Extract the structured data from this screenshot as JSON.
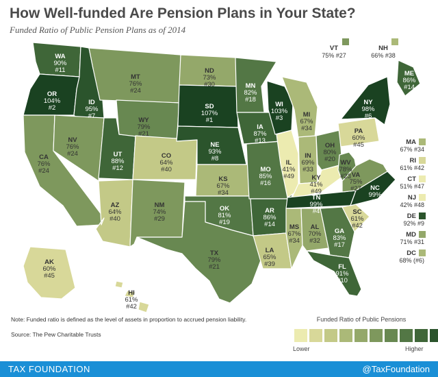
{
  "title": "How Well-funded Are Pension Plans in Your State?",
  "subtitle": "Funded Ratio of Public Pension Plans as of 2014",
  "note": "Note: Funded ratio is defined as the level of assets in proportion to accrued pension liability.",
  "source": "Source: The Pew Charitable Trusts",
  "legend": {
    "title": "Funded Ratio of Public Pensions",
    "lower": "Lower",
    "higher": "Higher",
    "colors": [
      "#ecebb0",
      "#d8d899",
      "#c3c987",
      "#abb978",
      "#94a86a",
      "#7e985d",
      "#688851",
      "#537745",
      "#3f6638",
      "#2b542c",
      "#1a4221"
    ]
  },
  "footer": {
    "brand": "TAX FOUNDATION",
    "handle": "@TaxFoundation"
  },
  "states": [
    {
      "code": "WA",
      "ratio": "90%",
      "rank": "#11",
      "level": 8
    },
    {
      "code": "OR",
      "ratio": "104%",
      "rank": "#2",
      "level": 10
    },
    {
      "code": "CA",
      "ratio": "76%",
      "rank": "#24",
      "level": 5
    },
    {
      "code": "ID",
      "ratio": "95%",
      "rank": "#7",
      "level": 9
    },
    {
      "code": "NV",
      "ratio": "76%",
      "rank": "#24",
      "level": 5
    },
    {
      "code": "UT",
      "ratio": "88%",
      "rank": "#12",
      "level": 8
    },
    {
      "code": "AZ",
      "ratio": "64%",
      "rank": "#40",
      "level": 2
    },
    {
      "code": "MT",
      "ratio": "76%",
      "rank": "#24",
      "level": 5
    },
    {
      "code": "WY",
      "ratio": "79%",
      "rank": "#21",
      "level": 6
    },
    {
      "code": "CO",
      "ratio": "64%",
      "rank": "#40",
      "level": 2
    },
    {
      "code": "NM",
      "ratio": "74%",
      "rank": "#29",
      "level": 5
    },
    {
      "code": "ND",
      "ratio": "73%",
      "rank": "#30",
      "level": 4
    },
    {
      "code": "SD",
      "ratio": "107%",
      "rank": "#1",
      "level": 10
    },
    {
      "code": "NE",
      "ratio": "93%",
      "rank": "#8",
      "level": 9
    },
    {
      "code": "KS",
      "ratio": "67%",
      "rank": "#34",
      "level": 3
    },
    {
      "code": "OK",
      "ratio": "81%",
      "rank": "#19",
      "level": 7
    },
    {
      "code": "TX",
      "ratio": "79%",
      "rank": "#21",
      "level": 6
    },
    {
      "code": "MN",
      "ratio": "82%",
      "rank": "#18",
      "level": 7
    },
    {
      "code": "IA",
      "ratio": "87%",
      "rank": "#13",
      "level": 8
    },
    {
      "code": "MO",
      "ratio": "85%",
      "rank": "#16",
      "level": 7
    },
    {
      "code": "AR",
      "ratio": "86%",
      "rank": "#14",
      "level": 8
    },
    {
      "code": "LA",
      "ratio": "65%",
      "rank": "#39",
      "level": 2
    },
    {
      "code": "WI",
      "ratio": "103%",
      "rank": "#3",
      "level": 10
    },
    {
      "code": "IL",
      "ratio": "41%",
      "rank": "#49",
      "level": 0
    },
    {
      "code": "MI",
      "ratio": "67%",
      "rank": "#34",
      "level": 3
    },
    {
      "code": "IN",
      "ratio": "69%",
      "rank": "#33",
      "level": 3
    },
    {
      "code": "OH",
      "ratio": "80%",
      "rank": "#20",
      "level": 6
    },
    {
      "code": "KY",
      "ratio": "41%",
      "rank": "#49",
      "level": 0
    },
    {
      "code": "TN",
      "ratio": "99%",
      "rank": "#4",
      "level": 10
    },
    {
      "code": "MS",
      "ratio": "67%",
      "rank": "#34",
      "level": 3
    },
    {
      "code": "AL",
      "ratio": "70%",
      "rank": "#32",
      "level": 4
    },
    {
      "code": "GA",
      "ratio": "83%",
      "rank": "#17",
      "level": 7
    },
    {
      "code": "FL",
      "ratio": "91%",
      "rank": "#10",
      "level": 8
    },
    {
      "code": "SC",
      "ratio": "61%",
      "rank": "#42",
      "level": 1
    },
    {
      "code": "NC",
      "ratio": "99%",
      "rank": "#4",
      "level": 10
    },
    {
      "code": "VA",
      "ratio": "75%",
      "rank": "#27",
      "level": 5
    },
    {
      "code": "WV",
      "ratio": "78%",
      "rank": "#23",
      "level": 6
    },
    {
      "code": "PA",
      "ratio": "60%",
      "rank": "#45",
      "level": 1
    },
    {
      "code": "NY",
      "ratio": "98%",
      "rank": "#6",
      "level": 10
    },
    {
      "code": "ME",
      "ratio": "86%",
      "rank": "#14",
      "level": 8
    },
    {
      "code": "AK",
      "ratio": "60%",
      "rank": "#45",
      "level": 1
    },
    {
      "code": "HI",
      "ratio": "61%",
      "rank": "#42",
      "level": 1
    }
  ],
  "callouts": [
    {
      "code": "VT",
      "text": "75% #27",
      "level": 5
    },
    {
      "code": "NH",
      "text": "66% #38",
      "level": 3
    },
    {
      "code": "MA",
      "text": "67% #34",
      "level": 3
    },
    {
      "code": "RI",
      "text": "61% #42",
      "level": 1
    },
    {
      "code": "CT",
      "text": "51% #47",
      "level": 0
    },
    {
      "code": "NJ",
      "text": "42% #48",
      "level": 0
    },
    {
      "code": "DE",
      "text": "92% #9",
      "level": 9
    },
    {
      "code": "MD",
      "text": "71% #31",
      "level": 4
    },
    {
      "code": "DC",
      "text": "68% (#6)",
      "level": 3
    }
  ]
}
